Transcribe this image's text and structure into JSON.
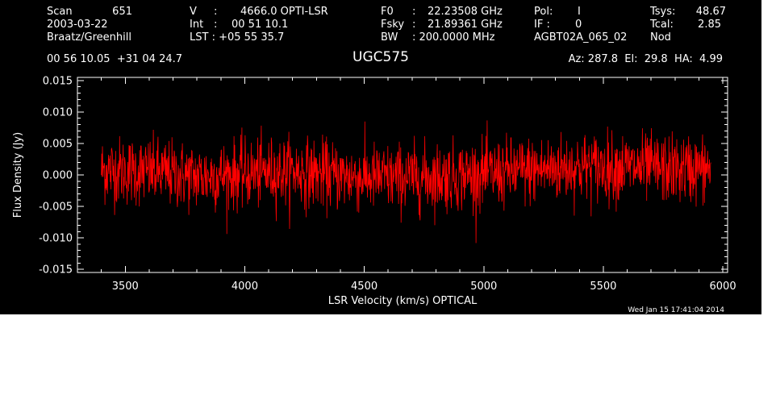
{
  "header": {
    "col1": [
      "Scan",
      "651",
      "2003-03-22",
      "Braatz/Greenhill"
    ],
    "col2_v_label": "V",
    "col2_v_value": "4666.0 OPTI-LSR",
    "col2_int_label": "Int",
    "col2_int_value": "00 51 10.1",
    "col2_lst": "LST : +05 55 35.7",
    "col3_f0_label": "F0",
    "col3_f0_value": "22.23508 GHz",
    "col3_fsky_label": "Fsky",
    "col3_fsky_value": "21.89361 GHz",
    "col3_bw_label": "BW",
    "col3_bw_value": ": 200.0000 MHz",
    "col4_pol_label": "Pol:",
    "col4_pol_value": "I",
    "col4_if_label": "IF :",
    "col4_if_value": "0",
    "col4_project": "AGBT02A_065_02",
    "col5_tsys_label": "Tsys:",
    "col5_tsys_value": "48.67",
    "col5_tcal_label": "Tcal:",
    "col5_tcal_value": "2.85",
    "col5_mode": "Nod",
    "coords": "00 56 10.05  +31 04 24.7",
    "source": "UGC575",
    "az_el_ha": "Az: 287.8  El:  29.8  HA:  4.99",
    "timestamp": "Wed Jan 15 17:41:04 2014"
  },
  "chart_data": {
    "type": "line",
    "title": "UGC575",
    "xlabel": "LSR Velocity (km/s) OPTICAL",
    "ylabel": "Flux Density (Jy)",
    "xlim": [
      3300,
      6020
    ],
    "ylim": [
      -0.0155,
      0.0155
    ],
    "xticks": [
      3500,
      4000,
      4500,
      5000,
      5500,
      6000
    ],
    "xtick_labels": [
      "3500",
      "4000",
      "4500",
      "5000",
      "5500",
      "6000"
    ],
    "yticks": [
      0.015,
      0.01,
      0.005,
      0.0,
      -0.005,
      -0.01,
      -0.015
    ],
    "ytick_labels": [
      "0.015",
      "0.010",
      "0.005",
      "0.000",
      "-0.005",
      "-0.010",
      "-0.015"
    ],
    "series": [
      {
        "color": "#ff0000",
        "x_start": 3400,
        "x_end": 5950,
        "baseline": [
          [
            3400,
            0.0008
          ],
          [
            3600,
            0.0005
          ],
          [
            3800,
            -0.0003
          ],
          [
            4000,
            0.0002
          ],
          [
            4200,
            0.0006
          ],
          [
            4400,
            -0.0002
          ],
          [
            4600,
            -0.0005
          ],
          [
            4800,
            -0.0003
          ],
          [
            5000,
            0.0001
          ],
          [
            5200,
            0.0007
          ],
          [
            5400,
            0.0013
          ],
          [
            5600,
            0.0012
          ],
          [
            5800,
            0.0009
          ],
          [
            5950,
            0.001
          ]
        ],
        "noise_rms": 0.0027,
        "x_step": 1.5
      }
    ],
    "grid": false,
    "legend": "none"
  }
}
